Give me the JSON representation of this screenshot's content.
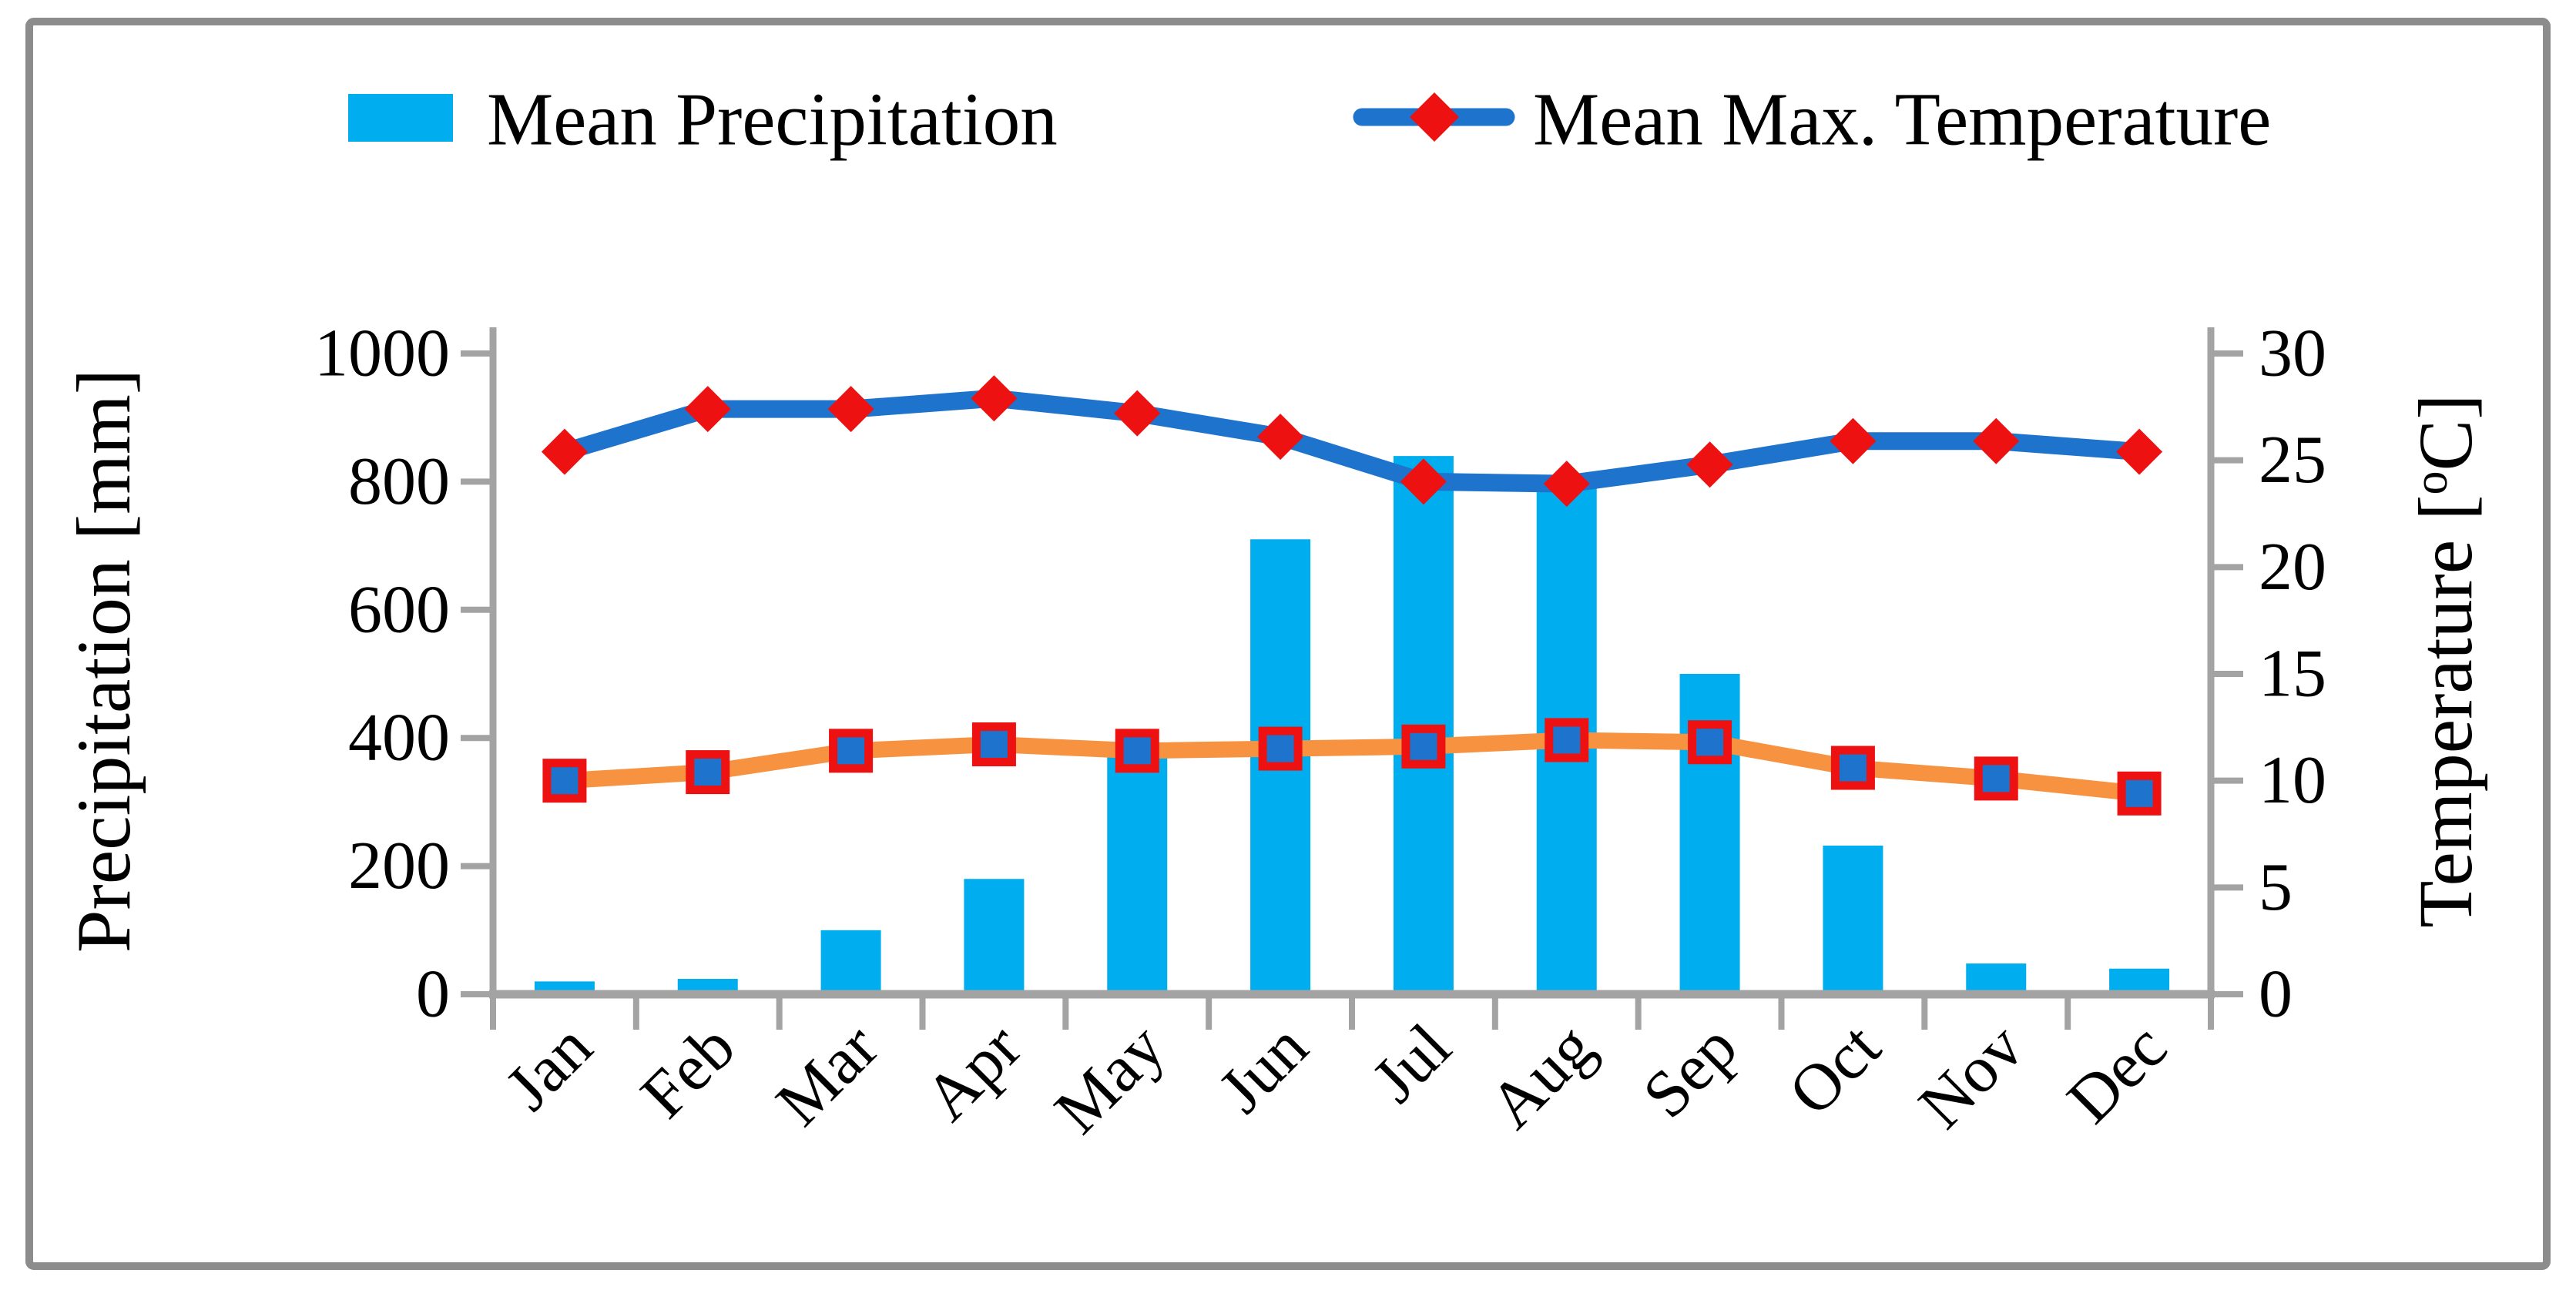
{
  "figure": {
    "background": "#FFFFFF",
    "border_color": "#8C8C8C"
  },
  "legend": {
    "items": [
      {
        "label": "Mean Precipitation",
        "marker": "square"
      },
      {
        "label": "Mean Max. Temperature",
        "marker": "line-diamond"
      }
    ]
  },
  "colors": {
    "bar": "#00AEEF",
    "temp_line": "#1E73CC",
    "temp_marker": "#EE1111",
    "series3_line": "#F79240",
    "series3_marker_fill": "#1E73CC",
    "series3_marker_border": "#EE1111",
    "axis": "#A3A3A3",
    "text": "#000000"
  },
  "chart_data": {
    "type": "bar+line combo, dual axis",
    "grid": false,
    "legend_position": "top",
    "categories": [
      "Jan",
      "Feb",
      "Mar",
      "Apr",
      "May",
      "Jun",
      "Jul",
      "Aug",
      "Sep",
      "Oct",
      "Nov",
      "Dec"
    ],
    "series": [
      {
        "name": "Mean Precipitation",
        "type": "bar",
        "axis": "left",
        "in_legend": true,
        "values": [
          20,
          24,
          100,
          180,
          370,
          710,
          840,
          790,
          500,
          232,
          48,
          40
        ]
      },
      {
        "name": "Mean Max. Temperature",
        "type": "line",
        "axis": "right",
        "marker": "diamond",
        "in_legend": true,
        "values": [
          25.4,
          27.4,
          27.4,
          27.9,
          27.2,
          26.1,
          24.0,
          23.9,
          24.8,
          25.9,
          25.9,
          25.4
        ]
      },
      {
        "name": "",
        "type": "line",
        "axis": "right",
        "marker": "square",
        "in_legend": false,
        "values": [
          10.0,
          10.4,
          11.4,
          11.7,
          11.4,
          11.5,
          11.6,
          11.9,
          11.8,
          10.6,
          10.1,
          9.4
        ]
      }
    ],
    "left_axis": {
      "title": "Precipitation [mm]",
      "min": 0,
      "max": 1000,
      "ticks": [
        0,
        200,
        400,
        600,
        800,
        1000
      ]
    },
    "right_axis": {
      "title": "Temperature [oC]",
      "title_parts": {
        "main": "Temperature [",
        "sup": "o",
        "end": "C]"
      },
      "min": 0,
      "max": 30,
      "ticks": [
        0,
        5,
        10,
        15,
        20,
        25,
        30
      ]
    }
  }
}
